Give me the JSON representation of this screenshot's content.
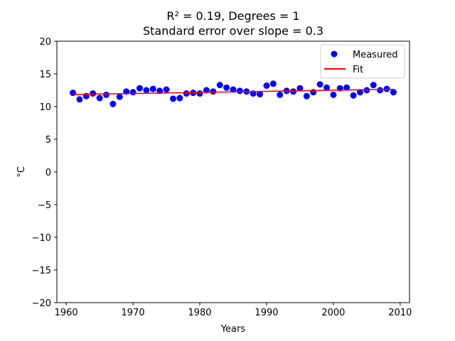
{
  "chart_data": {
    "type": "scatter",
    "title": "R² = 0.19, Degrees = 1",
    "subtitle": "Standard error over slope = 0.3",
    "xlabel": "Years",
    "ylabel": "°C",
    "xlim": [
      1958.6,
      2011.4
    ],
    "ylim": [
      -20,
      20
    ],
    "x_ticks": [
      1960,
      1970,
      1980,
      1990,
      2000,
      2010
    ],
    "y_ticks": [
      -20,
      -15,
      -10,
      -5,
      0,
      5,
      10,
      15,
      20
    ],
    "grid": false,
    "legend_position": "top-right",
    "series": [
      {
        "name": "Measured",
        "kind": "points",
        "color": "#0000ff",
        "x": [
          1961,
          1962,
          1963,
          1964,
          1965,
          1966,
          1967,
          1968,
          1969,
          1970,
          1971,
          1972,
          1973,
          1974,
          1975,
          1976,
          1977,
          1978,
          1979,
          1980,
          1981,
          1982,
          1983,
          1984,
          1985,
          1986,
          1987,
          1988,
          1989,
          1990,
          1991,
          1992,
          1993,
          1994,
          1995,
          1996,
          1997,
          1998,
          1999,
          2000,
          2001,
          2002,
          2003,
          2004,
          2005,
          2006,
          2007,
          2008,
          2009
        ],
        "y": [
          12.1,
          11.1,
          11.6,
          12.0,
          11.3,
          11.8,
          10.4,
          11.5,
          12.3,
          12.2,
          12.8,
          12.5,
          12.7,
          12.4,
          12.6,
          11.2,
          11.3,
          12.0,
          12.1,
          12.0,
          12.5,
          12.3,
          13.3,
          12.9,
          12.6,
          12.4,
          12.3,
          12.0,
          11.9,
          13.2,
          13.5,
          11.8,
          12.4,
          12.3,
          12.8,
          11.6,
          12.2,
          13.4,
          12.9,
          11.8,
          12.8,
          12.9,
          11.7,
          12.2,
          12.5,
          13.3,
          12.5,
          12.7,
          12.2
        ]
      },
      {
        "name": "Fit",
        "kind": "line",
        "color": "#ff0000",
        "x": [
          1961,
          2009
        ],
        "y": [
          11.85,
          12.65
        ]
      }
    ]
  }
}
